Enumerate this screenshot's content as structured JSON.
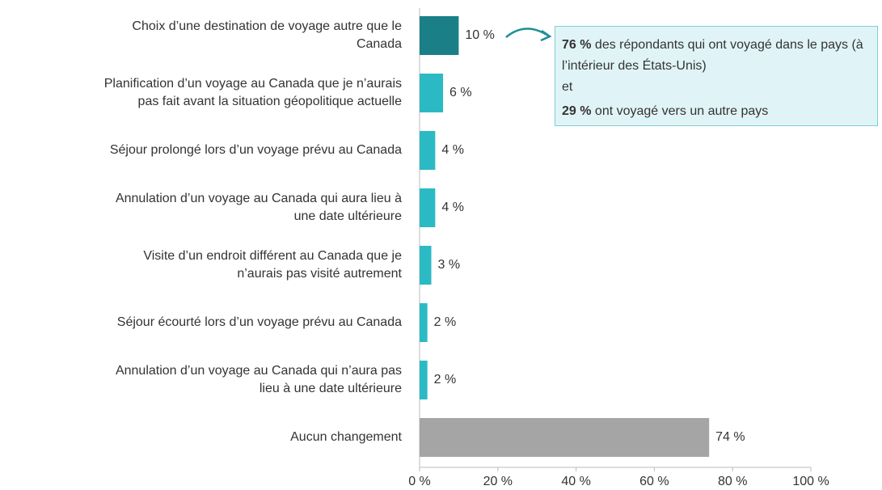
{
  "chart_data": {
    "type": "barh",
    "categories": [
      "Choix d’une destination de voyage autre que le\nCanada",
      "Planification d’un voyage au Canada que je n’aurais\npas fait avant la situation géopolitique actuelle",
      "Séjour prolongé lors d’un voyage prévu au Canada",
      "Annulation d’un voyage au Canada qui aura lieu à\nune date ultérieure",
      "Visite d’un endroit différent au Canada que je\nn’aurais pas visité autrement",
      "Séjour écourté lors d’un voyage prévu au Canada",
      "Annulation d’un voyage au Canada qui n’aura pas\nlieu à une date ultérieure",
      "Aucun changement"
    ],
    "values": [
      10,
      6,
      4,
      4,
      3,
      2,
      2,
      74
    ],
    "value_labels": [
      "10 %",
      "6 %",
      "4 %",
      "4 %",
      "3 %",
      "2 %",
      "2 %",
      "74 %"
    ],
    "colors": [
      "#1b7f87",
      "#2bbac3",
      "#2bbac3",
      "#2bbac3",
      "#2bbac3",
      "#2bbac3",
      "#2bbac3",
      "#a5a5a5"
    ],
    "xlim": [
      0,
      100
    ],
    "xticks": [
      {
        "value": 0,
        "label": "0 %"
      },
      {
        "value": 20,
        "label": "20 %"
      },
      {
        "value": 40,
        "label": "40 %"
      },
      {
        "value": 60,
        "label": "60 %"
      },
      {
        "value": 80,
        "label": "80 %"
      },
      {
        "value": 100,
        "label": "100 %"
      }
    ],
    "annotation": {
      "stat1": "76 %",
      "text1": "des répondants qui ont voyagé dans le pays (à l’intérieur des États-Unis)",
      "connector": "et",
      "stat2": "29 %",
      "text2": "ont voyagé vers un autre pays"
    }
  }
}
